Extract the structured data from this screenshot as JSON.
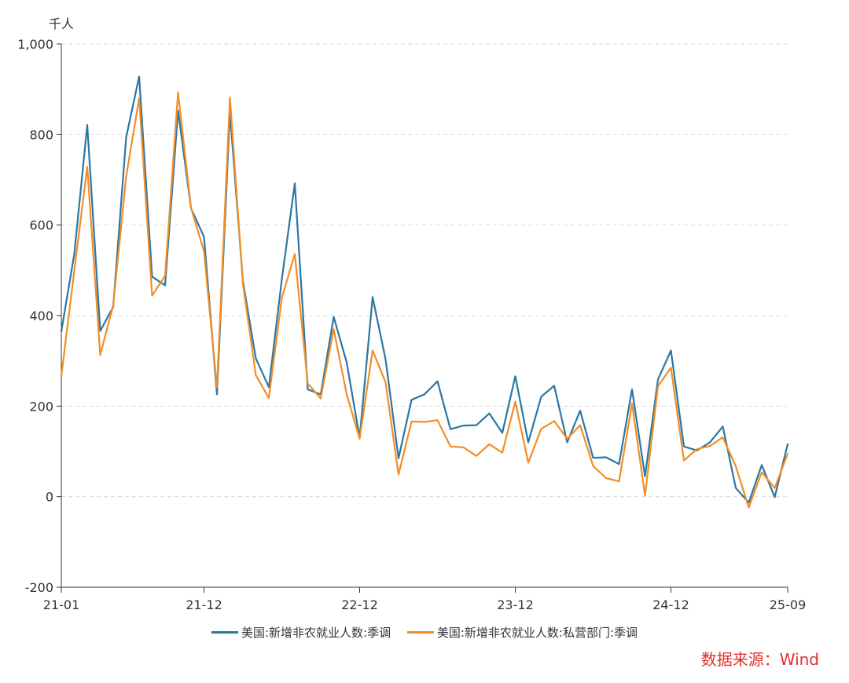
{
  "chart_data": {
    "type": "line",
    "unit_label": "千人",
    "ylim": [
      -200,
      1000
    ],
    "y_ticks": [
      -200,
      0,
      200,
      400,
      600,
      800,
      1000
    ],
    "y_tick_labels": [
      "-200",
      "0",
      "200",
      "400",
      "600",
      "800",
      "1,000"
    ],
    "x_tick_labels": [
      "21-01",
      "21-12",
      "22-12",
      "23-12",
      "24-12",
      "25-09"
    ],
    "x_tick_indices": [
      0,
      11,
      23,
      35,
      47,
      56
    ],
    "categories": [
      "21-01",
      "21-02",
      "21-03",
      "21-04",
      "21-05",
      "21-06",
      "21-07",
      "21-08",
      "21-09",
      "21-10",
      "21-11",
      "21-12",
      "22-01",
      "22-02",
      "22-03",
      "22-04",
      "22-05",
      "22-06",
      "22-07",
      "22-08",
      "22-09",
      "22-10",
      "22-11",
      "22-12",
      "23-01",
      "23-02",
      "23-03",
      "23-04",
      "23-05",
      "23-06",
      "23-07",
      "23-08",
      "23-09",
      "23-10",
      "23-11",
      "23-12",
      "24-01",
      "24-02",
      "24-03",
      "24-04",
      "24-05",
      "24-06",
      "24-07",
      "24-08",
      "24-09",
      "24-10",
      "24-11",
      "24-12",
      "25-01",
      "25-02",
      "25-03",
      "25-04",
      "25-05",
      "25-06",
      "25-07",
      "25-08",
      "25-09"
    ],
    "grid": true,
    "series": [
      {
        "name": "美国:新增非农就业人数:季调",
        "color": "#2b77a3",
        "values": [
          365,
          536,
          821,
          366,
          419,
          794,
          928,
          486,
          467,
          853,
          637,
          574,
          226,
          849,
          476,
          305,
          242,
          480,
          692,
          237,
          226,
          397,
          297,
          130,
          441,
          303,
          85,
          214,
          226,
          255,
          149,
          157,
          158,
          184,
          141,
          266,
          120,
          221,
          245,
          120,
          190,
          86,
          87,
          72,
          237,
          45,
          259,
          323,
          111,
          102,
          120,
          155,
          19,
          -13,
          70,
          -1,
          116
        ]
      },
      {
        "name": "美国:新增非农就业人数:私营部门:季调",
        "color": "#f28e25",
        "values": [
          266,
          499,
          729,
          313,
          423,
          707,
          880,
          444,
          488,
          893,
          638,
          542,
          241,
          882,
          470,
          268,
          218,
          439,
          536,
          250,
          217,
          370,
          226,
          128,
          323,
          252,
          49,
          166,
          165,
          169,
          111,
          109,
          90,
          116,
          97,
          210,
          75,
          150,
          167,
          128,
          158,
          68,
          41,
          34,
          206,
          2,
          244,
          285,
          80,
          105,
          112,
          131,
          67,
          -24,
          54,
          19,
          95
        ]
      }
    ],
    "legend_position": "bottom-center"
  },
  "source_note": "数据来源：Wind"
}
